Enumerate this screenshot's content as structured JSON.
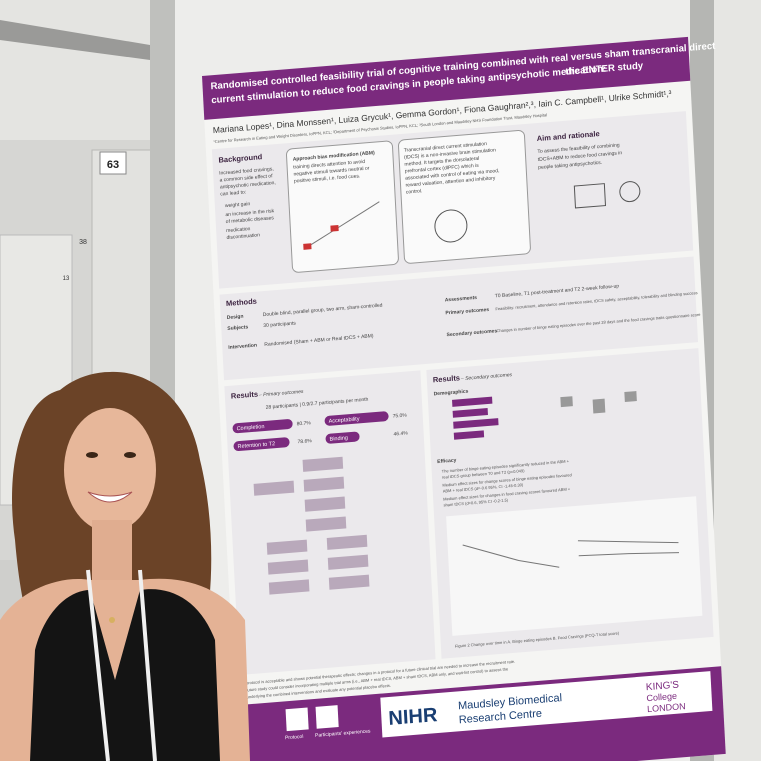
{
  "booth_numbers": [
    "63",
    "38",
    "13"
  ],
  "poster": {
    "title_lines": [
      "Randomised controlled feasibility trial of cognitive training combined with real versus sham transcranial direct",
      "current stimulation to reduce food cravings in people taking antipsychotic medication:"
    ],
    "title_highlight": "the ENTER study",
    "authors": "Mariana Lopes¹, Dina Monssen¹, Luiza Grycuk¹, Gemma Gordon¹, Fiona Gaughran²,³, Iain C. Campbell¹, Ulrike Schmidt¹,³",
    "affiliations": "¹Centre for Research in Eating and Weight Disorders, IoPPN, KCL; ²Department of Psychosis Studies, IoPPN, KCL; ³South London and Maudsley NHS Foundation Trust, Maudsley Hospital",
    "background": {
      "heading": "Background",
      "lines": [
        "Increased food cravings,",
        "a common side effect of",
        "antipsychotic medication,",
        "can lead to:"
      ],
      "bullets": [
        "weight gain",
        "an increase in the risk",
        "of metabolic diseases",
        "medication",
        "discontinuation"
      ]
    },
    "abm": {
      "heading": [
        "Approach bias modification (ABM)"
      ],
      "lines": [
        "training directs attention to avoid",
        "negative stimuli towards neutral or",
        "positive stimuli, i.e. food cues."
      ]
    },
    "tdcs": {
      "lines": [
        "Transcranial direct current stimulation",
        "(tDCS) is a non-invasive brain stimulation",
        "method. It targets the dorsolateral",
        "prefrontal cortex (dlPFC) which is",
        "associated with control of eating via mood,",
        "reward valuation, attention and inhibitory",
        "control."
      ]
    },
    "aim": {
      "heading": "Aim and rationale",
      "lines": [
        "To assess the feasibility of combining",
        "tDCS+ABM to reduce food cravings in",
        "people taking antipsychotics."
      ]
    },
    "methods": {
      "heading": "Methods",
      "left": [
        [
          "Design",
          "Double blind, parallel group, two arm, sham-controlled"
        ],
        [
          "Subjects",
          "30 participants"
        ],
        [
          "Intervention",
          "Randomised (Sham + ABM or Real tDCS + ABM)"
        ]
      ],
      "right": [
        [
          "Assessments",
          "T0 Baseline, T1 post-treatment and T2 2-week follow-up"
        ],
        [
          "Primary outcomes",
          "Feasibility: recruitment, attendance and retention rates, tDCS safety, acceptability, tolerability and blinding success"
        ],
        [
          "Secondary outcomes",
          "Changes in number of binge eating episodes over the past 28 days and the food cravings traits questionnaire score"
        ]
      ]
    },
    "primary": {
      "heading": "Results",
      "subheading": "– Primary outcomes",
      "participants": "28 participants | 0.9/2.7 participants per month",
      "bars": [
        [
          "Completion",
          "80.7%"
        ],
        [
          "Acceptability",
          "75.0%"
        ],
        [
          "Retention to T2",
          "78.6%"
        ],
        [
          "Binding",
          "46.4%"
        ]
      ]
    },
    "secondary": {
      "heading": "Results",
      "subheading": "– Secondary outcomes",
      "demographics": "Demographics",
      "efficacy": "Efficacy",
      "bullets": [
        "The number of binge eating episodes significantly reduced in the ABM +",
        "real tDCS group between T0 and T2 (p=0.049)",
        "Medium effect sizes for change scores of binge eating episodes favoured",
        "ABM + real tDCS (d=-0.6 95%, CI -1.45-0.30)",
        "Medium effect sizes for changes in food craving scores favoured ABM +",
        "sham tDCS (d=0.6, 95% CI -0.2-1.5)"
      ],
      "figure_caption": "Figure 2 Change over time in A. Binge eating episodes B. Food Cravings (FCQ-T total score)"
    },
    "conclusion": [
      "protocol is acceptable and shows potential therapeutic effects; changes in a protocol for a future clinical trial are needed to increase the recruitment rate.",
      "future study could consider incorporating multiple trial arms (i.e., ABM + real tDCS, ABM + sham tDCS, ABM only, and wait-list control) to assess the",
      "underlying the combined interventions and evaluate any potential placebo effects."
    ],
    "footer": {
      "qr_labels": [
        "Protocol",
        "Participants' experiences"
      ],
      "nihr": "NIHR",
      "brc": [
        "Maudsley Biomedical",
        "Research Centre"
      ],
      "kcl": [
        "KING'S",
        "College",
        "LONDON"
      ]
    }
  }
}
